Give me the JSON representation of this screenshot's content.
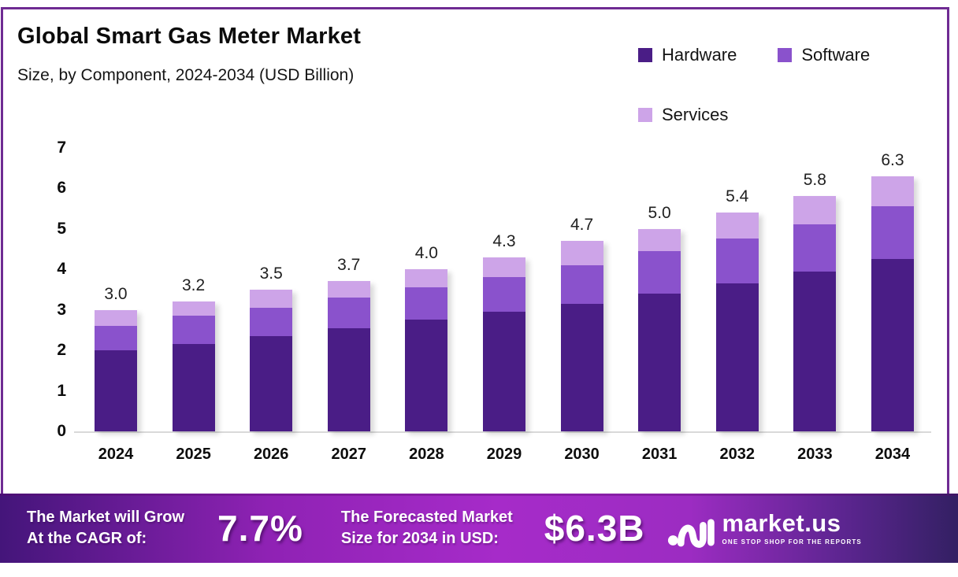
{
  "header": {
    "title": "Global Smart Gas Meter Market",
    "subtitle": "Size, by Component, 2024-2034 (USD Billion)"
  },
  "legend": [
    {
      "label": "Hardware",
      "color": "#4a1d86"
    },
    {
      "label": "Software",
      "color": "#8a52cc"
    },
    {
      "label": "Services",
      "color": "#cda4e8"
    }
  ],
  "chart_data": {
    "type": "bar",
    "stacked": true,
    "title": "Global Smart Gas Meter Market Size, by Component, 2024-2034 (USD Billion)",
    "categories": [
      "2024",
      "2025",
      "2026",
      "2027",
      "2028",
      "2029",
      "2030",
      "2031",
      "2032",
      "2033",
      "2034"
    ],
    "series": [
      {
        "name": "Hardware",
        "color": "#4a1d86",
        "values": [
          2.0,
          2.15,
          2.35,
          2.55,
          2.75,
          2.95,
          3.15,
          3.4,
          3.65,
          3.95,
          4.25
        ]
      },
      {
        "name": "Software",
        "color": "#8a52cc",
        "values": [
          0.6,
          0.7,
          0.7,
          0.75,
          0.8,
          0.85,
          0.95,
          1.05,
          1.1,
          1.15,
          1.3
        ]
      },
      {
        "name": "Services",
        "color": "#cda4e8",
        "values": [
          0.4,
          0.35,
          0.45,
          0.4,
          0.45,
          0.5,
          0.6,
          0.55,
          0.65,
          0.7,
          0.75
        ]
      }
    ],
    "totals": [
      "3.0",
      "3.2",
      "3.5",
      "3.7",
      "4.0",
      "4.3",
      "4.7",
      "5.0",
      "5.4",
      "5.8",
      "6.3"
    ],
    "yticks": [
      0,
      1,
      2,
      3,
      4,
      5,
      6,
      7
    ],
    "ylim": [
      0,
      7
    ],
    "xlabel": "",
    "ylabel": "",
    "grid": false,
    "legend_position": "top-right"
  },
  "banner": {
    "cagr_label_line1": "The Market will Grow",
    "cagr_label_line2": "At the CAGR of:",
    "cagr_value": "7.7%",
    "forecast_label_line1": "The Forecasted Market",
    "forecast_label_line2": "Size for 2034 in USD:",
    "forecast_value": "$6.3B"
  },
  "logo": {
    "name": "market.us",
    "tagline": "ONE STOP SHOP FOR THE REPORTS"
  },
  "colors": {
    "frame_border": "#6f2b93",
    "axis_line": "#d9d9d9",
    "banner_gradient_start": "#44157a",
    "banner_gradient_mid": "#a62bc9",
    "banner_gradient_end": "#332063"
  }
}
